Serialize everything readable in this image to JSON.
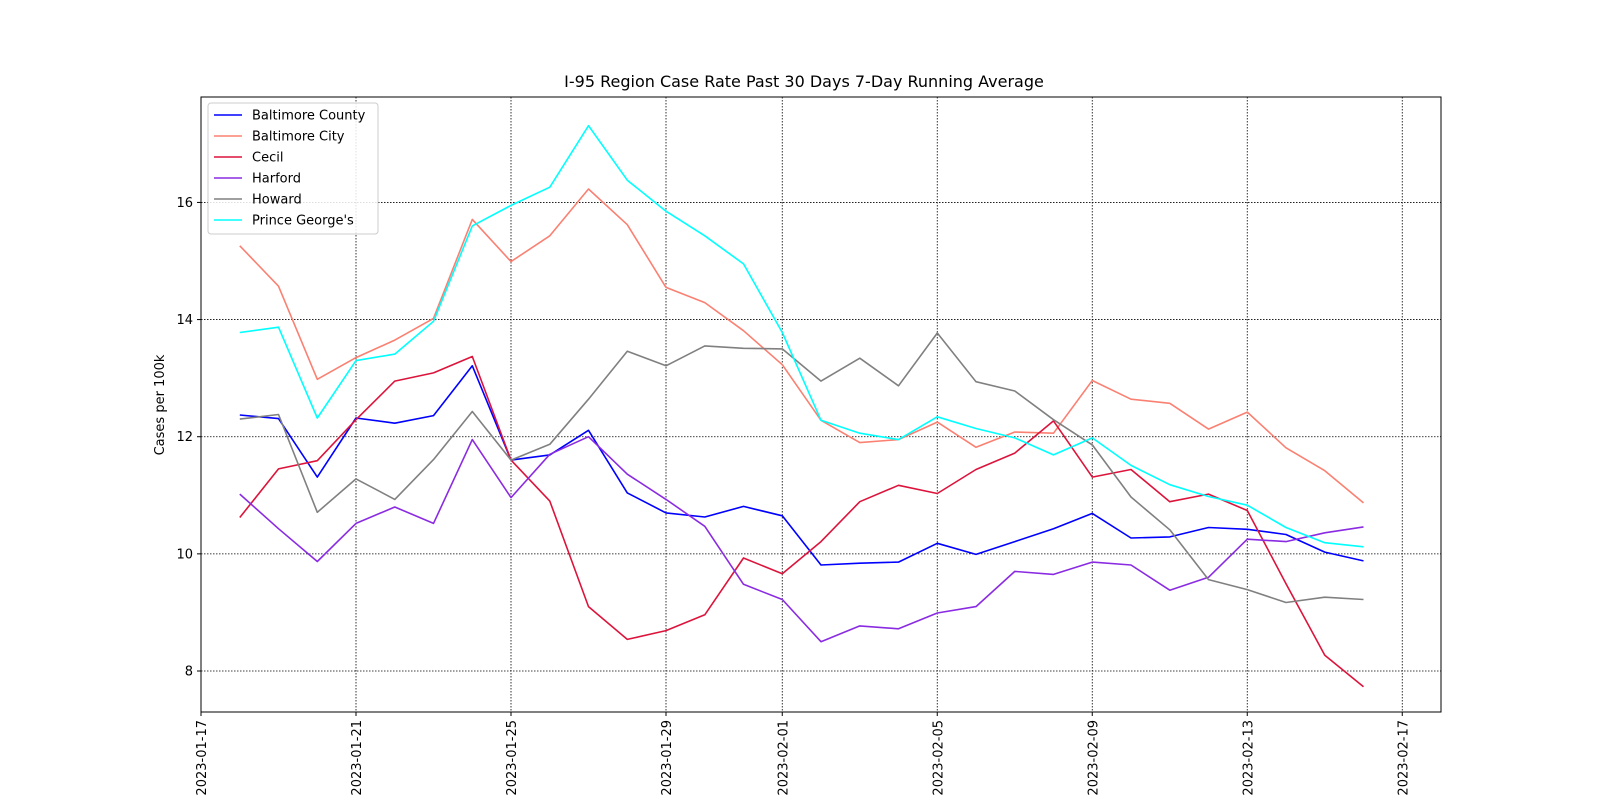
{
  "chart_data": {
    "type": "line",
    "title": "I-95 Region Case Rate  Past 30 Days 7-Day Running Average",
    "xlabel": "",
    "ylabel": "Cases per 100k",
    "xlim": [
      "2023-01-17",
      "2023-02-18"
    ],
    "ylim": [
      7.3,
      17.8
    ],
    "x_ticks": [
      "2023-01-17",
      "2023-01-21",
      "2023-01-25",
      "2023-01-29",
      "2023-02-01",
      "2023-02-05",
      "2023-02-09",
      "2023-02-13",
      "2023-02-17"
    ],
    "y_ticks": [
      8,
      10,
      12,
      14,
      16
    ],
    "grid": true,
    "legend_position": "top-left",
    "x": [
      "2023-01-18",
      "2023-01-19",
      "2023-01-20",
      "2023-01-21",
      "2023-01-22",
      "2023-01-23",
      "2023-01-24",
      "2023-01-25",
      "2023-01-26",
      "2023-01-27",
      "2023-01-28",
      "2023-01-29",
      "2023-01-30",
      "2023-01-31",
      "2023-02-01",
      "2023-02-02",
      "2023-02-03",
      "2023-02-04",
      "2023-02-05",
      "2023-02-06",
      "2023-02-07",
      "2023-02-08",
      "2023-02-09",
      "2023-02-10",
      "2023-02-11",
      "2023-02-12",
      "2023-02-13",
      "2023-02-14",
      "2023-02-15",
      "2023-02-16"
    ],
    "series": [
      {
        "name": "Baltimore County",
        "color": "#0000ff",
        "values": [
          12.37,
          12.31,
          11.31,
          12.32,
          12.23,
          12.36,
          13.21,
          11.6,
          11.69,
          12.11,
          11.04,
          10.7,
          10.63,
          10.81,
          10.65,
          9.81,
          9.84,
          9.86,
          10.18,
          9.99,
          10.21,
          10.43,
          10.69,
          10.27,
          10.29,
          10.45,
          10.42,
          10.33,
          10.03,
          9.88
        ]
      },
      {
        "name": "Baltimore City",
        "color": "#fa8072",
        "values": [
          15.26,
          14.57,
          12.98,
          13.35,
          13.65,
          14.02,
          15.71,
          14.99,
          15.43,
          16.23,
          15.62,
          14.55,
          14.29,
          13.81,
          13.23,
          12.28,
          11.9,
          11.95,
          12.25,
          11.82,
          12.08,
          12.06,
          12.96,
          12.64,
          12.57,
          12.13,
          12.42,
          11.81,
          11.42,
          10.87
        ]
      },
      {
        "name": "Cecil",
        "color": "#dc143c",
        "values": [
          10.62,
          11.45,
          11.59,
          12.29,
          12.95,
          13.09,
          13.37,
          11.6,
          10.9,
          9.1,
          8.54,
          8.69,
          8.96,
          9.93,
          9.66,
          10.21,
          10.89,
          11.17,
          11.03,
          11.44,
          11.72,
          12.27,
          11.31,
          11.44,
          10.89,
          11.02,
          10.74,
          9.49,
          8.27,
          7.73
        ]
      },
      {
        "name": "Harford",
        "color": "#8a2be2",
        "values": [
          11.02,
          10.43,
          9.87,
          10.52,
          10.8,
          10.52,
          11.95,
          10.96,
          11.7,
          12.0,
          11.36,
          10.93,
          10.47,
          9.48,
          9.22,
          8.5,
          8.77,
          8.72,
          8.99,
          9.1,
          9.7,
          9.65,
          9.86,
          9.81,
          9.38,
          9.6,
          10.25,
          10.21,
          10.36,
          10.46
        ]
      },
      {
        "name": "Howard",
        "color": "#808080",
        "values": [
          12.3,
          12.38,
          10.71,
          11.28,
          10.93,
          11.61,
          12.43,
          11.6,
          11.87,
          12.64,
          13.46,
          13.21,
          13.55,
          13.51,
          13.5,
          12.95,
          13.34,
          12.87,
          13.77,
          12.94,
          12.78,
          12.29,
          11.86,
          10.97,
          10.41,
          9.56,
          9.39,
          9.17,
          9.26,
          9.22
        ]
      },
      {
        "name": "Prince George's",
        "color": "#00ffff",
        "values": [
          13.78,
          13.87,
          12.32,
          13.3,
          13.41,
          13.97,
          15.6,
          15.95,
          16.26,
          17.31,
          16.38,
          15.85,
          15.43,
          14.95,
          13.78,
          12.28,
          12.06,
          11.95,
          12.34,
          12.14,
          11.98,
          11.69,
          11.98,
          11.51,
          11.18,
          10.98,
          10.83,
          10.45,
          10.19,
          10.12
        ]
      }
    ]
  }
}
